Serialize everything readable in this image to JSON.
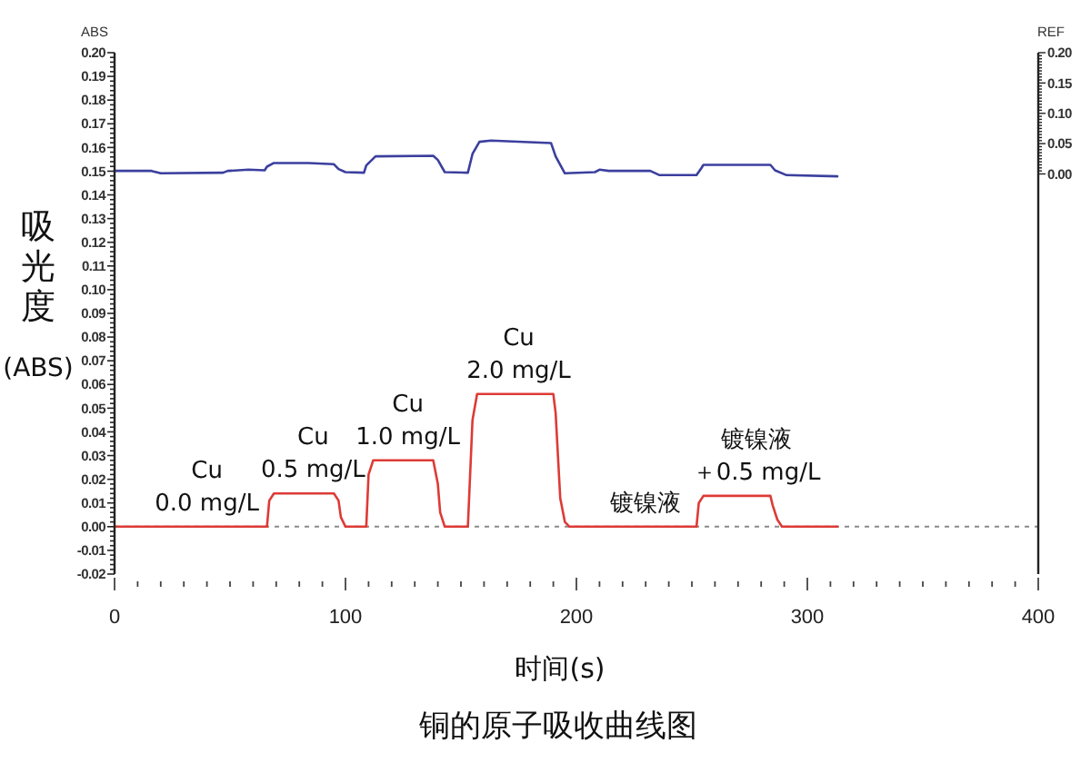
{
  "chart_data": {
    "type": "line",
    "title": "铜的原子吸收曲线图",
    "xlabel": "时间(s)",
    "ylabel": "吸光度(ABS)",
    "y2label": "REF",
    "xlim": [
      0,
      400
    ],
    "xticks": [
      0,
      {
        "value": 10,
        "label": null
      },
      {
        "value": 20,
        "label": null
      },
      {
        "value": 30,
        "label": null
      },
      {
        "value": 40,
        "label": null
      },
      {
        "value": 50,
        "label": null
      },
      {
        "value": 60,
        "label": null
      },
      {
        "value": 70,
        "label": null
      },
      {
        "value": 80,
        "label": null
      },
      {
        "value": 90,
        "label": null
      },
      100,
      {
        "value": 110,
        "label": null
      },
      {
        "value": 120,
        "label": null
      },
      {
        "value": 130,
        "label": null
      },
      {
        "value": 140,
        "label": null
      },
      {
        "value": 150,
        "label": null
      },
      {
        "value": 160,
        "label": null
      },
      {
        "value": 170,
        "label": null
      },
      {
        "value": 180,
        "label": null
      },
      {
        "value": 190,
        "label": null
      },
      200,
      {
        "value": 210,
        "label": null
      },
      {
        "value": 220,
        "label": null
      },
      {
        "value": 230,
        "label": null
      },
      {
        "value": 240,
        "label": null
      },
      {
        "value": 250,
        "label": null
      },
      {
        "value": 260,
        "label": null
      },
      {
        "value": 270,
        "label": null
      },
      {
        "value": 280,
        "label": null
      },
      {
        "value": 290,
        "label": null
      },
      300,
      {
        "value": 310,
        "label": null
      },
      {
        "value": 320,
        "label": null
      },
      {
        "value": 330,
        "label": null
      },
      {
        "value": 340,
        "label": null
      },
      {
        "value": 350,
        "label": null
      },
      {
        "value": 360,
        "label": null
      },
      {
        "value": 370,
        "label": null
      },
      {
        "value": 380,
        "label": null
      },
      {
        "value": 390,
        "label": null
      },
      400
    ],
    "ylim": [
      -0.02,
      0.2
    ],
    "yticks": [
      {
        "value": -0.02,
        "label": "-0.02"
      },
      {
        "value": -0.018,
        "label": null
      },
      {
        "value": -0.016,
        "label": null
      },
      {
        "value": -0.014,
        "label": null
      },
      {
        "value": -0.012,
        "label": null
      },
      {
        "value": -0.01,
        "label": "-0.01"
      },
      {
        "value": -0.008,
        "label": null
      },
      {
        "value": -0.006,
        "label": null
      },
      {
        "value": -0.004,
        "label": null
      },
      {
        "value": -0.002,
        "label": null
      },
      {
        "value": 0,
        "label": "0.00"
      },
      {
        "value": 0.002,
        "label": null
      },
      {
        "value": 0.004,
        "label": null
      },
      {
        "value": 0.006,
        "label": null
      },
      {
        "value": 0.008,
        "label": null
      },
      {
        "value": 0.01,
        "label": "0.01"
      },
      {
        "value": 0.012,
        "label": null
      },
      {
        "value": 0.014,
        "label": null
      },
      {
        "value": 0.016,
        "label": null
      },
      {
        "value": 0.018,
        "label": null
      },
      {
        "value": 0.02,
        "label": "0.02"
      },
      {
        "value": 0.022,
        "label": null
      },
      {
        "value": 0.024,
        "label": null
      },
      {
        "value": 0.026,
        "label": null
      },
      {
        "value": 0.028,
        "label": null
      },
      {
        "value": 0.03,
        "label": "0.03"
      },
      {
        "value": 0.032,
        "label": null
      },
      {
        "value": 0.034,
        "label": null
      },
      {
        "value": 0.036,
        "label": null
      },
      {
        "value": 0.038,
        "label": null
      },
      {
        "value": 0.04,
        "label": "0.04"
      },
      {
        "value": 0.042,
        "label": null
      },
      {
        "value": 0.044,
        "label": null
      },
      {
        "value": 0.046,
        "label": null
      },
      {
        "value": 0.048,
        "label": null
      },
      {
        "value": 0.05,
        "label": "0.05"
      },
      {
        "value": 0.052,
        "label": null
      },
      {
        "value": 0.054,
        "label": null
      },
      {
        "value": 0.056,
        "label": null
      },
      {
        "value": 0.058,
        "label": null
      },
      {
        "value": 0.06,
        "label": "0.06"
      },
      {
        "value": 0.062,
        "label": null
      },
      {
        "value": 0.064,
        "label": null
      },
      {
        "value": 0.066,
        "label": null
      },
      {
        "value": 0.068,
        "label": null
      },
      {
        "value": 0.07,
        "label": "0.07"
      },
      {
        "value": 0.072,
        "label": null
      },
      {
        "value": 0.074,
        "label": null
      },
      {
        "value": 0.076,
        "label": null
      },
      {
        "value": 0.078,
        "label": null
      },
      {
        "value": 0.08,
        "label": "0.08"
      },
      {
        "value": 0.082,
        "label": null
      },
      {
        "value": 0.084,
        "label": null
      },
      {
        "value": 0.086,
        "label": null
      },
      {
        "value": 0.088,
        "label": null
      },
      {
        "value": 0.09,
        "label": "0.09"
      },
      {
        "value": 0.092,
        "label": null
      },
      {
        "value": 0.094,
        "label": null
      },
      {
        "value": 0.096,
        "label": null
      },
      {
        "value": 0.098,
        "label": null
      },
      {
        "value": 0.1,
        "label": "0.10"
      },
      {
        "value": 0.102,
        "label": null
      },
      {
        "value": 0.104,
        "label": null
      },
      {
        "value": 0.106,
        "label": null
      },
      {
        "value": 0.108,
        "label": null
      },
      {
        "value": 0.11,
        "label": "0.11"
      },
      {
        "value": 0.112,
        "label": null
      },
      {
        "value": 0.114,
        "label": null
      },
      {
        "value": 0.116,
        "label": null
      },
      {
        "value": 0.118,
        "label": null
      },
      {
        "value": 0.12,
        "label": "0.12"
      },
      {
        "value": 0.122,
        "label": null
      },
      {
        "value": 0.124,
        "label": null
      },
      {
        "value": 0.126,
        "label": null
      },
      {
        "value": 0.128,
        "label": null
      },
      {
        "value": 0.13,
        "label": "0.13"
      },
      {
        "value": 0.132,
        "label": null
      },
      {
        "value": 0.134,
        "label": null
      },
      {
        "value": 0.136,
        "label": null
      },
      {
        "value": 0.138,
        "label": null
      },
      {
        "value": 0.14,
        "label": "0.14"
      },
      {
        "value": 0.142,
        "label": null
      },
      {
        "value": 0.144,
        "label": null
      },
      {
        "value": 0.146,
        "label": null
      },
      {
        "value": 0.148,
        "label": null
      },
      {
        "value": 0.15,
        "label": "0.15"
      },
      {
        "value": 0.152,
        "label": null
      },
      {
        "value": 0.154,
        "label": null
      },
      {
        "value": 0.156,
        "label": null
      },
      {
        "value": 0.158,
        "label": null
      },
      {
        "value": 0.16,
        "label": "0.16"
      },
      {
        "value": 0.162,
        "label": null
      },
      {
        "value": 0.164,
        "label": null
      },
      {
        "value": 0.166,
        "label": null
      },
      {
        "value": 0.168,
        "label": null
      },
      {
        "value": 0.17,
        "label": "0.17"
      },
      {
        "value": 0.172,
        "label": null
      },
      {
        "value": 0.174,
        "label": null
      },
      {
        "value": 0.176,
        "label": null
      },
      {
        "value": 0.178,
        "label": null
      },
      {
        "value": 0.18,
        "label": "0.18"
      },
      {
        "value": 0.182,
        "label": null
      },
      {
        "value": 0.184,
        "label": null
      },
      {
        "value": 0.186,
        "label": null
      },
      {
        "value": 0.188,
        "label": null
      },
      {
        "value": 0.19,
        "label": "0.19"
      },
      {
        "value": 0.192,
        "label": null
      },
      {
        "value": 0.194,
        "label": null
      },
      {
        "value": 0.196,
        "label": null
      },
      {
        "value": 0.198,
        "label": null
      },
      {
        "value": 0.2,
        "label": "0.20"
      }
    ],
    "y2lim": [
      -0.66,
      0.2
    ],
    "y2ticks": [
      {
        "value": 0,
        "label": "0.00"
      },
      {
        "value": 0.005,
        "label": null
      },
      {
        "value": 0.01,
        "label": null
      },
      {
        "value": 0.015,
        "label": null
      },
      {
        "value": 0.02,
        "label": null
      },
      {
        "value": 0.025,
        "label": null
      },
      {
        "value": 0.03,
        "label": null
      },
      {
        "value": 0.035,
        "label": null
      },
      {
        "value": 0.04,
        "label": null
      },
      {
        "value": 0.045,
        "label": null
      },
      {
        "value": 0.05,
        "label": "0.05"
      },
      {
        "value": 0.055,
        "label": null
      },
      {
        "value": 0.06,
        "label": null
      },
      {
        "value": 0.065,
        "label": null
      },
      {
        "value": 0.07,
        "label": null
      },
      {
        "value": 0.075,
        "label": null
      },
      {
        "value": 0.08,
        "label": null
      },
      {
        "value": 0.085,
        "label": null
      },
      {
        "value": 0.09,
        "label": null
      },
      {
        "value": 0.095,
        "label": null
      },
      {
        "value": 0.1,
        "label": "0.10"
      },
      {
        "value": 0.105,
        "label": null
      },
      {
        "value": 0.11,
        "label": null
      },
      {
        "value": 0.115,
        "label": null
      },
      {
        "value": 0.12,
        "label": null
      },
      {
        "value": 0.125,
        "label": null
      },
      {
        "value": 0.13,
        "label": null
      },
      {
        "value": 0.135,
        "label": null
      },
      {
        "value": 0.14,
        "label": null
      },
      {
        "value": 0.145,
        "label": null
      },
      {
        "value": 0.15,
        "label": "0.15"
      },
      {
        "value": 0.155,
        "label": null
      },
      {
        "value": 0.16,
        "label": null
      },
      {
        "value": 0.165,
        "label": null
      },
      {
        "value": 0.17,
        "label": null
      },
      {
        "value": 0.175,
        "label": null
      },
      {
        "value": 0.18,
        "label": null
      },
      {
        "value": 0.185,
        "label": null
      },
      {
        "value": 0.19,
        "label": null
      },
      {
        "value": 0.195,
        "label": null
      },
      {
        "value": 0.2,
        "label": "0.20"
      }
    ],
    "series": [
      {
        "color": "#dd3b36",
        "x": [
          0,
          66,
          67,
          69,
          95,
          97,
          98,
          100,
          109,
          110,
          112,
          138,
          140,
          141,
          143,
          153,
          155,
          157,
          190,
          191,
          193,
          195,
          197,
          252,
          253,
          255,
          284,
          285,
          287,
          289,
          313
        ],
        "values": [
          0,
          0,
          0.011,
          0.014,
          0.014,
          0.011,
          0.004,
          0,
          0,
          0.022,
          0.028,
          0.028,
          0.018,
          0.006,
          0,
          0,
          0.045,
          0.056,
          0.056,
          0.048,
          0.012,
          0.002,
          0,
          0,
          0.01,
          0.013,
          0.013,
          0.009,
          0.003,
          0,
          0
        ]
      },
      {
        "color": "#3b3f9e",
        "axis": "y2",
        "x": [
          0,
          16,
          20,
          47,
          49,
          58,
          65,
          66,
          69,
          84,
          95,
          97,
          100,
          108,
          109,
          113,
          138,
          140,
          143,
          153,
          155,
          158,
          163,
          189,
          191,
          195,
          208,
          210,
          214,
          232,
          236,
          252,
          254,
          255,
          284,
          286,
          291,
          313
        ],
        "values": [
          0.005,
          0.005,
          0.001,
          0.002,
          0.005,
          0.007,
          0.006,
          0.012,
          0.018,
          0.018,
          0.016,
          0.008,
          0.003,
          0.002,
          0.014,
          0.029,
          0.03,
          0.023,
          0.003,
          0.002,
          0.033,
          0.053,
          0.055,
          0.051,
          0.029,
          0.001,
          0.003,
          0.007,
          0.005,
          0.005,
          -0.002,
          -0.002,
          0.009,
          0.015,
          0.015,
          0.006,
          -0.002,
          -0.004
        ]
      }
    ],
    "ref_lines": [
      {
        "axis": "y",
        "value": 0,
        "color": "#8a8a8a",
        "line_style": "dashed"
      }
    ],
    "annotations": [
      "ABS",
      {
        "text": "Cu\n0.0 mg/L",
        "x": 40,
        "y": 0
      },
      {
        "text": "Cu\n0.5 mg/L",
        "x": 86,
        "y": 0.014
      },
      {
        "text": "Cu\n1.0 mg/L",
        "x": 127,
        "y": 0.028
      },
      {
        "text": "Cu\n2.0 mg/L",
        "x": 175,
        "y": 0.056
      },
      {
        "text": "镀镍液",
        "x": 230,
        "y": 0
      },
      {
        "text": "镀镍液＋0.5 mg/L",
        "x": 278,
        "y": 0.013
      }
    ]
  }
}
